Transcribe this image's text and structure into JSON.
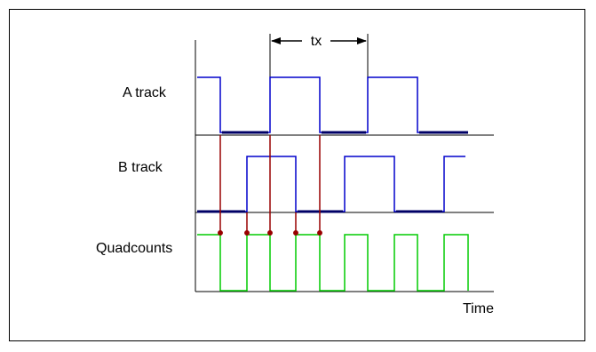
{
  "labels": {
    "a_track": "A track",
    "b_track": "B track",
    "quadcounts": "Quadcounts",
    "time": "Time",
    "period": "tx"
  },
  "colors": {
    "a_signal": "#0000cc",
    "b_signal": "#0000cc",
    "quadcounts_signal": "#00cc00",
    "edge_markers": "#990000",
    "axes": "#000000"
  }
}
